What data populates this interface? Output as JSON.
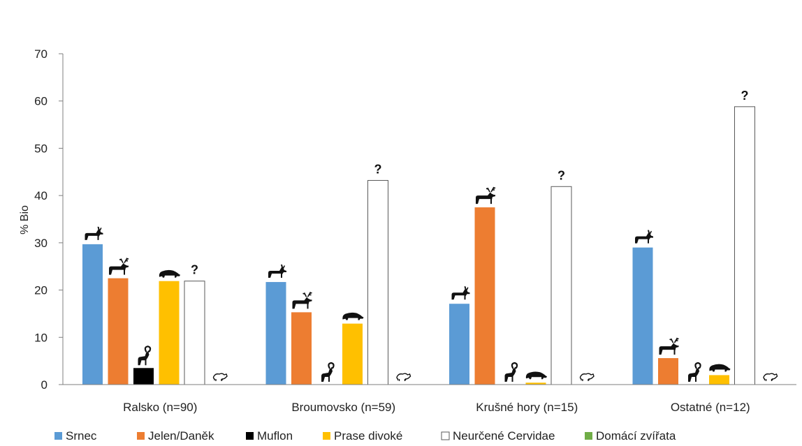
{
  "chart_data": {
    "type": "bar",
    "title": "",
    "xlabel": "",
    "ylabel": "% Bio",
    "ylim": [
      0,
      70
    ],
    "yticks": [
      0,
      10,
      20,
      30,
      40,
      50,
      60,
      70
    ],
    "grid": false,
    "legend_position": "bottom",
    "categories": [
      "Ralsko (n=90)",
      "Broumovsko (n=59)",
      "Krušné hory (n=15)",
      "Ostatné (n=12)"
    ],
    "series": [
      {
        "name": "Srnec",
        "color": "#5b9bd5",
        "icon": "roe-deer-icon",
        "values": [
          29.7,
          21.7,
          17.1,
          29.0
        ]
      },
      {
        "name": "Jelen/Daněk",
        "color": "#ed7d31",
        "icon": "red-deer-icon",
        "values": [
          22.5,
          15.3,
          37.5,
          5.6
        ]
      },
      {
        "name": "Muflon",
        "color": "#000000",
        "icon": "mouflon-icon",
        "values": [
          3.5,
          0,
          0,
          0
        ]
      },
      {
        "name": "Prase divoké",
        "color": "#ffc000",
        "icon": "wild-boar-icon",
        "values": [
          21.9,
          12.9,
          0.4,
          2.0
        ]
      },
      {
        "name": "Neurčené Cervidae",
        "color": "#ffffff",
        "icon": "question-mark-icon",
        "values": [
          21.9,
          43.2,
          41.9,
          58.8
        ]
      },
      {
        "name": "Domácí zvířata",
        "color": "#70ad47",
        "icon": "sheep-icon",
        "values": [
          0,
          0,
          0,
          0
        ]
      }
    ],
    "question_mark": "?"
  }
}
